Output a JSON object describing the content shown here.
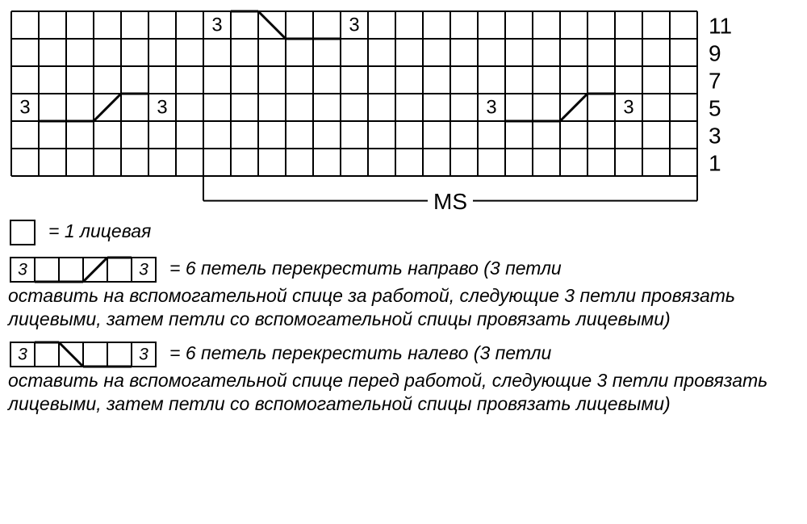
{
  "chart": {
    "cols": 25,
    "rows": 6,
    "cell": 34,
    "stroke": "#000000",
    "stroke_width": 2,
    "row_labels": [
      "11",
      "9",
      "7",
      "5",
      "3",
      "1"
    ],
    "row_label_fontsize": 28,
    "symbol_fontsize": 24,
    "ms_label": "MS",
    "ms_span_cols": [
      7,
      24
    ],
    "cables": [
      {
        "row": 0,
        "col": 7,
        "dir": "left"
      },
      {
        "row": 3,
        "col": 0,
        "dir": "right"
      },
      {
        "row": 3,
        "col": 17,
        "dir": "right"
      }
    ]
  },
  "legend": {
    "knit": {
      "label": "= 1 лицевая"
    },
    "cable_right": {
      "label_first": "= 6 петель перекрестить направо (3 петли",
      "label_rest": "оставить на вспомогательной спице за работой, следующие 3 петли провязать лицевыми, затем петли со вспомогательной спицы провязать лицевыми)"
    },
    "cable_left": {
      "label_first": "= 6 петель перекрестить налево (3 петли",
      "label_rest": "оставить на вспомогательной спице перед работой, следующие 3 петли провязать лицевыми, затем петли со вспомогательной спицы провязать лицевыми)"
    }
  },
  "style": {
    "text_color": "#000000",
    "bg": "#ffffff",
    "legend_fontsize": 23
  }
}
